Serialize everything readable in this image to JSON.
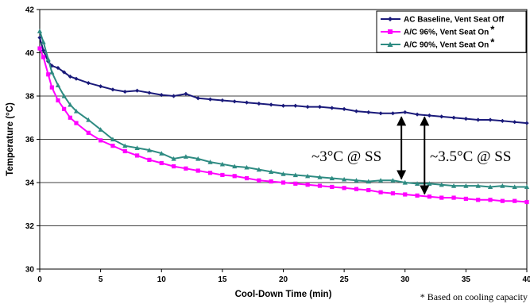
{
  "chart_data": {
    "type": "line",
    "title": "",
    "xlabel": "Cool-Down Time (min)",
    "ylabel": "Temperature (°C)",
    "xlim": [
      0,
      40
    ],
    "ylim": [
      30,
      42
    ],
    "xticks": [
      0,
      5,
      10,
      15,
      20,
      25,
      30,
      35,
      40
    ],
    "yticks": [
      30,
      32,
      34,
      36,
      38,
      40,
      42
    ],
    "grid": "horizontal",
    "legend_position": "top-right",
    "series": [
      {
        "name": "AC Baseline, Vent Seat Off",
        "color": "#1a1a7a",
        "marker": "diamond",
        "x": [
          0,
          0.3,
          0.7,
          1,
          1.5,
          2,
          2.5,
          3,
          4,
          5,
          6,
          7,
          8,
          9,
          10,
          11,
          12,
          13,
          14,
          15,
          16,
          17,
          18,
          19,
          20,
          21,
          22,
          23,
          24,
          25,
          26,
          27,
          28,
          29,
          30,
          31,
          32,
          33,
          34,
          35,
          36,
          37,
          38,
          39,
          40
        ],
        "y": [
          40.7,
          40.1,
          39.6,
          39.4,
          39.3,
          39.1,
          38.9,
          38.8,
          38.6,
          38.45,
          38.3,
          38.2,
          38.25,
          38.15,
          38.05,
          38.0,
          38.1,
          37.9,
          37.85,
          37.8,
          37.75,
          37.7,
          37.65,
          37.6,
          37.55,
          37.55,
          37.5,
          37.5,
          37.45,
          37.4,
          37.3,
          37.25,
          37.2,
          37.2,
          37.25,
          37.15,
          37.1,
          37.05,
          37.0,
          36.95,
          36.9,
          36.9,
          36.85,
          36.8,
          36.75
        ]
      },
      {
        "name": "A/C 96%, Vent Seat On",
        "name_suffix": "*",
        "color": "#ff00ff",
        "marker": "square",
        "x": [
          0,
          0.3,
          0.7,
          1,
          1.5,
          2,
          2.5,
          3,
          4,
          5,
          6,
          7,
          8,
          9,
          10,
          11,
          12,
          13,
          14,
          15,
          16,
          17,
          18,
          19,
          20,
          21,
          22,
          23,
          24,
          25,
          26,
          27,
          28,
          29,
          30,
          31,
          32,
          33,
          34,
          35,
          36,
          37,
          38,
          39,
          40
        ],
        "y": [
          40.2,
          39.8,
          39.0,
          38.4,
          37.8,
          37.4,
          37.0,
          36.75,
          36.3,
          35.95,
          35.7,
          35.45,
          35.25,
          35.05,
          34.9,
          34.75,
          34.65,
          34.55,
          34.45,
          34.35,
          34.3,
          34.2,
          34.1,
          34.05,
          34.0,
          33.95,
          33.9,
          33.85,
          33.8,
          33.75,
          33.7,
          33.65,
          33.55,
          33.5,
          33.45,
          33.4,
          33.35,
          33.3,
          33.3,
          33.25,
          33.2,
          33.2,
          33.15,
          33.15,
          33.1
        ]
      },
      {
        "name": "A/C 90%, Vent Seat On",
        "name_suffix": "*",
        "color": "#2e8b82",
        "marker": "triangle",
        "x": [
          0,
          0.3,
          0.7,
          1,
          1.5,
          2,
          2.5,
          3,
          4,
          5,
          6,
          7,
          8,
          9,
          10,
          11,
          12,
          13,
          14,
          15,
          16,
          17,
          18,
          19,
          20,
          21,
          22,
          23,
          24,
          25,
          26,
          27,
          28,
          29,
          30,
          31,
          32,
          33,
          34,
          35,
          36,
          37,
          38,
          39,
          40
        ],
        "y": [
          41.0,
          40.5,
          39.7,
          39.1,
          38.5,
          38.0,
          37.6,
          37.3,
          36.9,
          36.45,
          36.0,
          35.7,
          35.6,
          35.5,
          35.35,
          35.1,
          35.2,
          35.1,
          34.95,
          34.85,
          34.75,
          34.7,
          34.6,
          34.5,
          34.4,
          34.35,
          34.3,
          34.25,
          34.2,
          34.15,
          34.1,
          34.05,
          34.1,
          34.1,
          34.0,
          33.95,
          33.95,
          33.9,
          33.85,
          33.85,
          33.85,
          33.8,
          33.85,
          33.8,
          33.8
        ]
      }
    ],
    "annotations": [
      {
        "text": "~3°C @ SS",
        "x": 29.7,
        "y_top": 37.1,
        "y_bottom": 34.1
      },
      {
        "text": "~3.5°C @ SS",
        "x": 31.6,
        "y_top": 37.1,
        "y_bottom": 33.4
      }
    ],
    "footnote": "* Based on cooling capacity"
  }
}
